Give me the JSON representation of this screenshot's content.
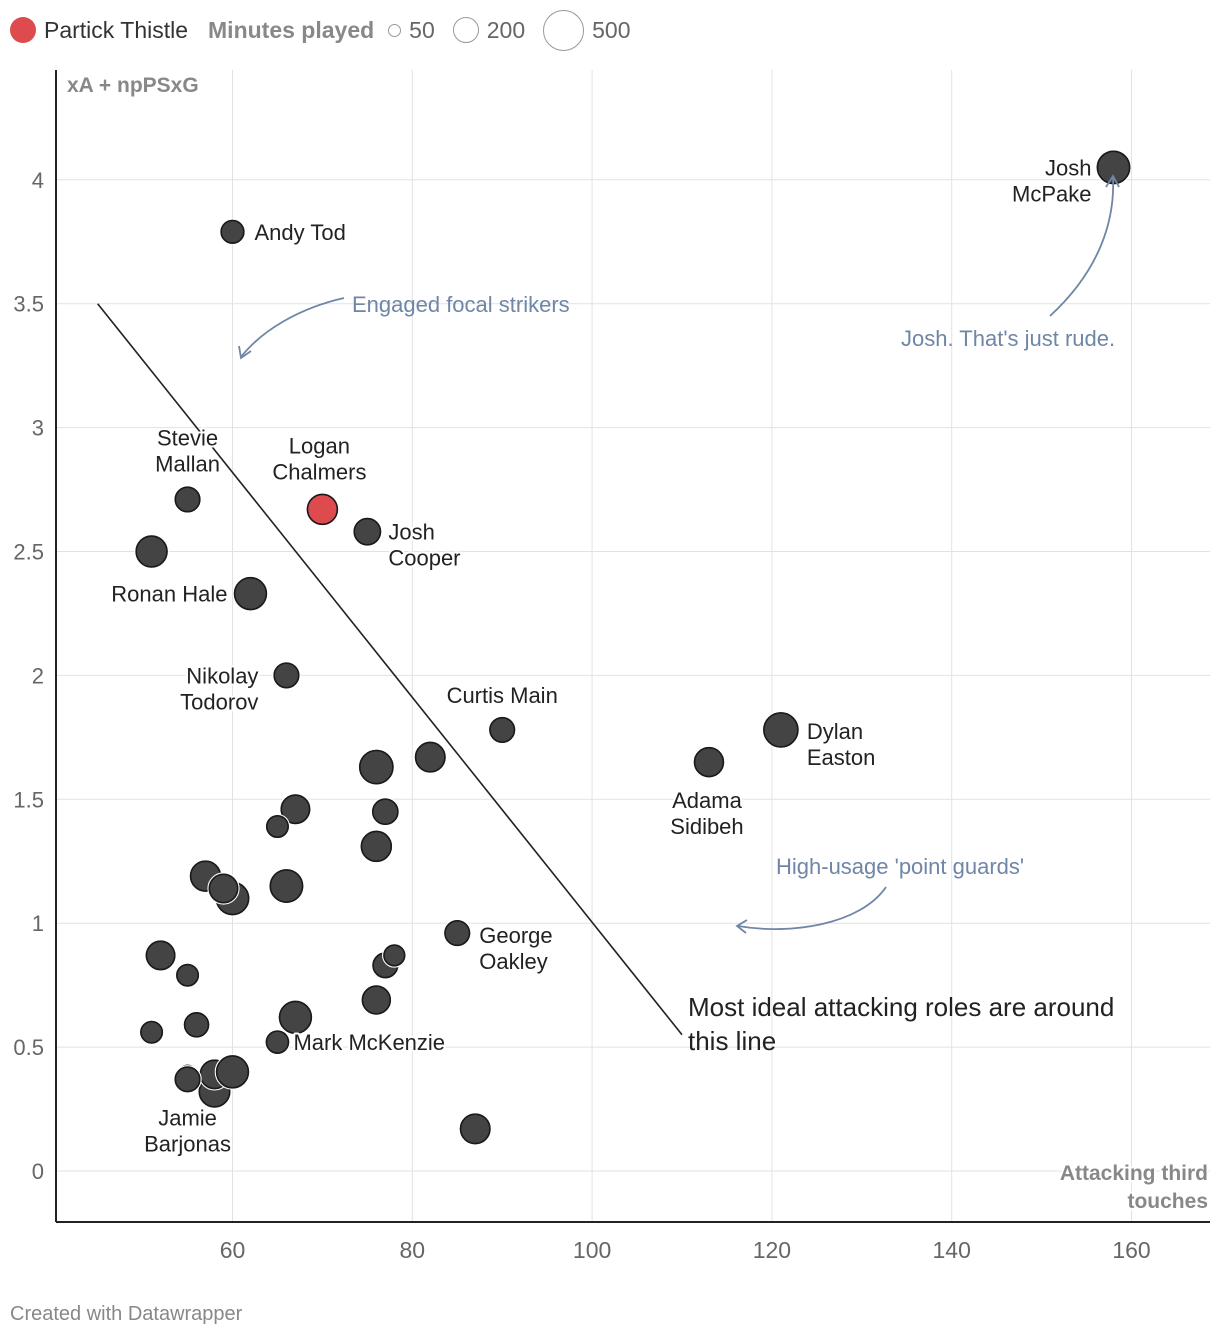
{
  "chart_data": {
    "type": "scatter",
    "title": "",
    "xlabel": "Attacking third touches",
    "ylabel": "xA + npPSxG",
    "xlim": [
      40,
      168
    ],
    "ylim": [
      -0.2,
      4.45
    ],
    "x_ticks": [
      "60",
      "80",
      "100",
      "120",
      "140",
      "160"
    ],
    "y_ticks": [
      "0",
      "0.5",
      "1",
      "1.5",
      "2",
      "2.5",
      "3",
      "3.5",
      "4"
    ],
    "size_legend": {
      "title": "Minutes played",
      "entries": [
        "50",
        "200",
        "500"
      ]
    },
    "highlight": {
      "label": "Partick Thistle",
      "color": "#dd4b4f"
    },
    "point_color": "#444444",
    "labeled_points": [
      {
        "name": "Josh McPake",
        "lines": [
          "Josh",
          "McPake"
        ],
        "x": 158,
        "y": 4.05,
        "minutes": 380
      },
      {
        "name": "Andy Tod",
        "lines": [
          "Andy Tod"
        ],
        "x": 60,
        "y": 3.79,
        "minutes": 200
      },
      {
        "name": "Stevie Mallan",
        "lines": [
          "Stevie",
          "Mallan"
        ],
        "x": 55,
        "y": 2.71,
        "minutes": 230
      },
      {
        "name": "Logan Chalmers",
        "lines": [
          "Logan",
          "Chalmers"
        ],
        "x": 70,
        "y": 2.67,
        "minutes": 330,
        "highlight": true
      },
      {
        "name": "Josh Cooper",
        "lines": [
          "Josh",
          "Cooper"
        ],
        "x": 75,
        "y": 2.58,
        "minutes": 260
      },
      {
        "name": "Ronan Hale",
        "lines": [
          "Ronan Hale"
        ],
        "x": 62,
        "y": 2.33,
        "minutes": 370
      },
      {
        "name": "Nikolay Todorov",
        "lines": [
          "Nikolay",
          "Todorov"
        ],
        "x": 66,
        "y": 2.0,
        "minutes": 230
      },
      {
        "name": "Curtis Main",
        "lines": [
          "Curtis Main"
        ],
        "x": 90,
        "y": 1.78,
        "minutes": 230
      },
      {
        "name": "Dylan Easton",
        "lines": [
          "Dylan",
          "Easton"
        ],
        "x": 121,
        "y": 1.78,
        "minutes": 420
      },
      {
        "name": "Adama Sidibeh",
        "lines": [
          "Adama",
          "Sidibeh"
        ],
        "x": 113,
        "y": 1.65,
        "minutes": 310
      },
      {
        "name": "George Oakley",
        "lines": [
          "George",
          "Oakley"
        ],
        "x": 85,
        "y": 0.96,
        "minutes": 230
      },
      {
        "name": "Mark McKenzie",
        "lines": [
          "Mark McKenzie"
        ],
        "x": 65,
        "y": 0.52,
        "minutes": 190
      },
      {
        "name": "Jamie Barjonas",
        "lines": [
          "Jamie",
          "Barjonas"
        ],
        "x": 55,
        "y": 0.37,
        "minutes": 230
      }
    ],
    "unlabeled_points": [
      {
        "x": 51,
        "y": 2.5,
        "minutes": 350
      },
      {
        "x": 82,
        "y": 1.67,
        "minutes": 320
      },
      {
        "x": 76,
        "y": 1.63,
        "minutes": 400
      },
      {
        "x": 67,
        "y": 1.46,
        "minutes": 300
      },
      {
        "x": 77,
        "y": 1.45,
        "minutes": 240
      },
      {
        "x": 65,
        "y": 1.39,
        "minutes": 180
      },
      {
        "x": 76,
        "y": 1.31,
        "minutes": 330
      },
      {
        "x": 57,
        "y": 1.19,
        "minutes": 330
      },
      {
        "x": 66,
        "y": 1.15,
        "minutes": 380
      },
      {
        "x": 60,
        "y": 1.1,
        "minutes": 380
      },
      {
        "x": 59,
        "y": 1.14,
        "minutes": 300
      },
      {
        "x": 52,
        "y": 0.87,
        "minutes": 300
      },
      {
        "x": 55,
        "y": 0.79,
        "minutes": 180
      },
      {
        "x": 77,
        "y": 0.83,
        "minutes": 230
      },
      {
        "x": 78,
        "y": 0.87,
        "minutes": 170
      },
      {
        "x": 76,
        "y": 0.69,
        "minutes": 290
      },
      {
        "x": 67,
        "y": 0.62,
        "minutes": 370
      },
      {
        "x": 56,
        "y": 0.59,
        "minutes": 220
      },
      {
        "x": 51,
        "y": 0.56,
        "minutes": 180
      },
      {
        "x": 58,
        "y": 0.32,
        "minutes": 340
      },
      {
        "x": 58,
        "y": 0.39,
        "minutes": 300
      },
      {
        "x": 60,
        "y": 0.4,
        "minutes": 370
      },
      {
        "x": 55,
        "y": 0.39,
        "minutes": 130
      },
      {
        "x": 87,
        "y": 0.17,
        "minutes": 320
      }
    ],
    "trend_line": {
      "x": [
        45,
        110
      ],
      "y": [
        3.5,
        0.55
      ]
    },
    "annotations": [
      {
        "text": "Engaged focal strikers",
        "style": "annotation"
      },
      {
        "text": "Josh. That's just rude.",
        "style": "annotation"
      },
      {
        "text": "High-usage 'point guards'",
        "style": "annotation"
      },
      {
        "lines": [
          "Most ideal attacking roles are around",
          "this line"
        ],
        "style": "note"
      }
    ]
  },
  "colors": {
    "annotation": "#6f86a6",
    "grid": "#e2e2e2",
    "axis": "#222222",
    "tick": "#666666"
  },
  "footer": {
    "text": "Created with Datawrapper"
  }
}
